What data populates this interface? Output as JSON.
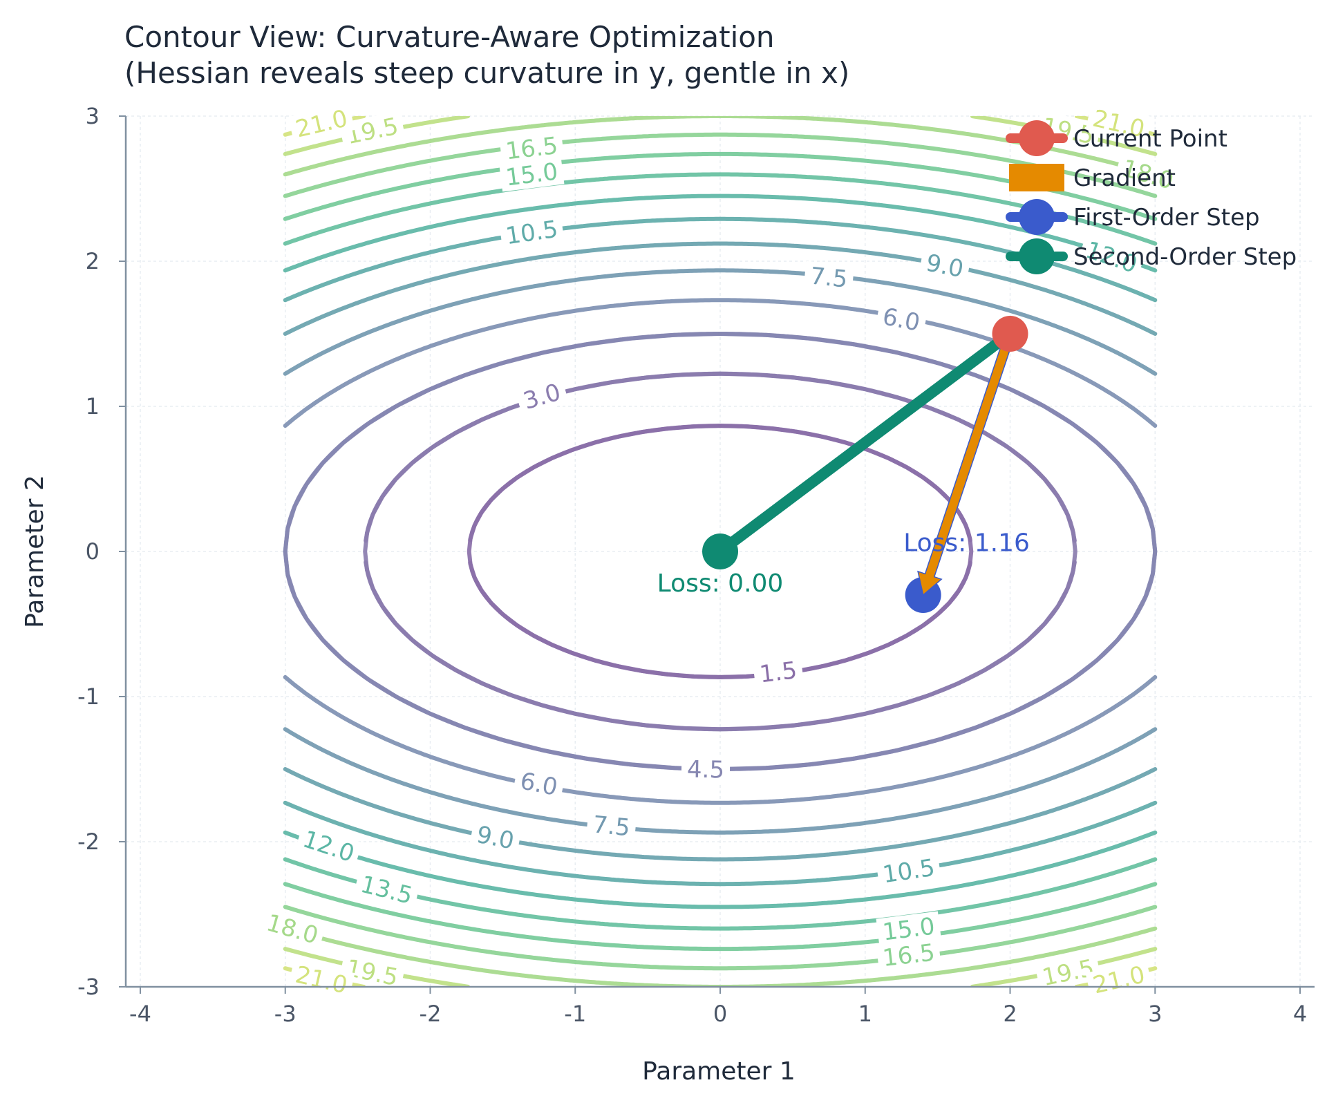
{
  "chart_data": {
    "type": "contour",
    "title_lines": [
      "Contour View: Curvature-Aware Optimization",
      "(Hessian reveals steep curvature in y, gentle in x)"
    ],
    "xlabel": "Parameter 1",
    "ylabel": "Parameter 2",
    "xlim": [
      -4.1,
      4.1
    ],
    "ylim": [
      -3,
      3
    ],
    "x_ticks": [
      -4,
      -3,
      -2,
      -1,
      0,
      1,
      2,
      3,
      4
    ],
    "y_ticks": [
      -3,
      -2,
      -1,
      0,
      1,
      2,
      3
    ],
    "x_tick_labels": [
      "-4",
      "-3",
      "-2",
      "-1",
      "0",
      "1",
      "2",
      "3",
      "4"
    ],
    "y_tick_labels": [
      "-3",
      "-2",
      "-1",
      "0",
      "1",
      "2",
      "3"
    ],
    "grid": true,
    "function": "0.5*x^2 + 2*y^2",
    "contour_domain_x": [
      -3,
      3
    ],
    "contour_levels": [
      1.5,
      3.0,
      4.5,
      6.0,
      7.5,
      9.0,
      10.5,
      12.0,
      13.5,
      15.0,
      16.5,
      18.0,
      19.5,
      21.0
    ],
    "colormap": [
      "#8a6fa8",
      "#8a82b0",
      "#7f8fb2",
      "#6f9cb0",
      "#5fa9aa",
      "#5cb8a4",
      "#6ec79b",
      "#8ed391",
      "#b3dd85",
      "#d4e37c"
    ],
    "contour_labels": [
      {
        "level": 1.5,
        "text": "1.5",
        "x": 0.4,
        "y": -0.83
      },
      {
        "level": 3.0,
        "text": "3.0",
        "x": -1.23,
        "y": 1.07
      },
      {
        "level": 4.5,
        "text": "4.5",
        "x": -0.1,
        "y": -1.5
      },
      {
        "level": 6.0,
        "text": "6.0",
        "x": -1.25,
        "y": -1.6
      },
      {
        "level": 6.0,
        "text": "6.0",
        "x": 1.25,
        "y": 1.6
      },
      {
        "level": 7.5,
        "text": "7.5",
        "x": -0.75,
        "y": -1.89
      },
      {
        "level": 7.5,
        "text": "7.5",
        "x": 0.75,
        "y": 1.89
      },
      {
        "level": 9.0,
        "text": "9.0",
        "x": -1.55,
        "y": -1.97
      },
      {
        "level": 9.0,
        "text": "9.0",
        "x": 1.55,
        "y": 1.97
      },
      {
        "level": 10.5,
        "text": "10.5",
        "x": -1.3,
        "y": 2.2
      },
      {
        "level": 10.5,
        "text": "10.5",
        "x": 1.3,
        "y": -2.2
      },
      {
        "level": 12.0,
        "text": "12.0",
        "x": -2.7,
        "y": -2.03
      },
      {
        "level": 12.0,
        "text": "12.0",
        "x": 2.7,
        "y": 2.03
      },
      {
        "level": 13.5,
        "text": "13.5",
        "x": -2.3,
        "y": -2.33
      },
      {
        "level": 15.0,
        "text": "15.0",
        "x": -1.3,
        "y": 2.6
      },
      {
        "level": 15.0,
        "text": "15.0",
        "x": 1.3,
        "y": -2.6
      },
      {
        "level": 16.5,
        "text": "16.5",
        "x": -1.3,
        "y": 2.78
      },
      {
        "level": 16.5,
        "text": "16.5",
        "x": 1.3,
        "y": -2.78
      },
      {
        "level": 18.0,
        "text": "18.0",
        "x": -2.95,
        "y": -2.6
      },
      {
        "level": 18.0,
        "text": "18.0",
        "x": 2.95,
        "y": 2.6
      },
      {
        "level": 19.5,
        "text": "19.5",
        "x": -2.4,
        "y": 2.9
      },
      {
        "level": 19.5,
        "text": "19.5",
        "x": -2.4,
        "y": -2.9
      },
      {
        "level": 19.5,
        "text": "19.5",
        "x": 2.4,
        "y": -2.9
      },
      {
        "level": 19.5,
        "text": "19.5",
        "x": 2.4,
        "y": 2.9
      },
      {
        "level": 21.0,
        "text": "21.0",
        "x": -2.75,
        "y": 2.95
      },
      {
        "level": 21.0,
        "text": "21.0",
        "x": -2.75,
        "y": -2.95
      },
      {
        "level": 21.0,
        "text": "21.0",
        "x": 2.75,
        "y": -2.95
      },
      {
        "level": 21.0,
        "text": "21.0",
        "x": 2.75,
        "y": 2.95
      }
    ],
    "points": {
      "current": {
        "x": 2.0,
        "y": 1.5,
        "color": "#e05a4f"
      },
      "first_order": {
        "x": 1.4,
        "y": -0.3,
        "color": "#3a5bcc"
      },
      "second_order": {
        "x": 0.0,
        "y": 0.0,
        "color": "#0f8a72"
      }
    },
    "gradient_arrow": {
      "from": [
        2.0,
        1.5
      ],
      "to": [
        1.4,
        -0.3
      ],
      "color": "#e58a00",
      "edge": "#3a5bcc"
    },
    "second_order_path": {
      "from": [
        2.0,
        1.5
      ],
      "to": [
        0.0,
        0.0
      ],
      "color": "#0f8a72"
    },
    "annotations": [
      {
        "text": "Loss: 1.16",
        "x": 1.7,
        "y": 0.06,
        "color": "#3a5bcc"
      },
      {
        "text": "Loss: 0.00",
        "x": 0.0,
        "y": -0.22,
        "color": "#0f8a72"
      }
    ],
    "legend": {
      "placement": "top-right",
      "entries": [
        {
          "label": "Current Point",
          "marker": "circle-line",
          "color": "#e05a4f"
        },
        {
          "label": "Gradient",
          "marker": "rect",
          "color": "#e58a00"
        },
        {
          "label": "First-Order Step",
          "marker": "circle-line",
          "color": "#3a5bcc"
        },
        {
          "label": "Second-Order Step",
          "marker": "circle-line",
          "color": "#0f8a72"
        }
      ]
    },
    "axis_color": "#8090a0"
  }
}
